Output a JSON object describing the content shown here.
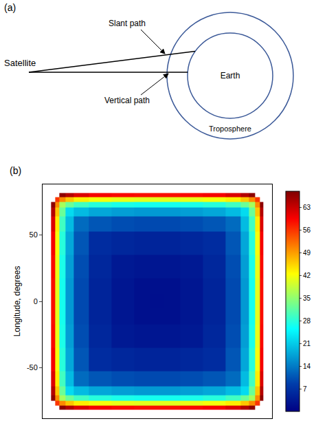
{
  "diagram": {
    "label": "(a)",
    "satellite": "Satellite",
    "slant_path": "Slant path",
    "vertical_path": "Vertical path",
    "earth": "Earth",
    "troposphere": "Troposphere"
  },
  "chart_data": {
    "type": "heatmap",
    "label": "(b)",
    "ylabel": "Longitude, degrees",
    "x": [
      -80,
      -77,
      -73,
      -68,
      -60,
      -45,
      -25,
      -10,
      0,
      10,
      25,
      45,
      60,
      68,
      73,
      77,
      80
    ],
    "y": [
      -80,
      -77,
      -73,
      -68,
      -60,
      -45,
      -25,
      -10,
      0,
      10,
      25,
      45,
      60,
      68,
      73,
      77,
      80
    ],
    "z": [
      [
        null,
        null,
        67,
        64.4,
        61.6,
        59.8,
        59,
        58.6,
        58.6,
        58.6,
        59,
        59.8,
        61.6,
        64.4,
        67,
        null,
        null
      ],
      [
        null,
        56,
        50.4,
        46.4,
        43.6,
        41.8,
        41,
        40.6,
        40.6,
        40.6,
        41,
        41.8,
        43.6,
        46.4,
        50.4,
        56,
        null
      ],
      [
        67,
        50.4,
        36.4,
        32.4,
        29.6,
        27.8,
        27,
        26.6,
        26.6,
        26.6,
        27,
        27.8,
        29.6,
        32.4,
        36.4,
        50.4,
        67
      ],
      [
        64.4,
        46.4,
        32.4,
        22.4,
        19.6,
        17.8,
        17,
        16.6,
        16.6,
        16.6,
        17,
        17.8,
        19.6,
        22.4,
        32.4,
        46.4,
        64.4
      ],
      [
        61.6,
        43.6,
        29.6,
        19.6,
        12.6,
        10.8,
        10,
        9.6,
        9.6,
        9.6,
        10,
        10.8,
        12.6,
        19.6,
        29.6,
        43.6,
        61.6
      ],
      [
        59.8,
        41.8,
        27.8,
        17.8,
        10.8,
        6.3,
        5.5,
        5.1,
        5.1,
        5.1,
        5.5,
        6.3,
        10.8,
        17.8,
        27.8,
        41.8,
        59.8
      ],
      [
        59,
        41,
        27,
        17,
        10,
        5.5,
        3.5,
        3.1,
        3.1,
        3.1,
        3.5,
        5.5,
        10,
        17,
        27,
        41,
        59
      ],
      [
        58.6,
        40.6,
        26.6,
        16.6,
        9.6,
        5.1,
        3.1,
        2.2,
        2.2,
        2.2,
        3.1,
        5.1,
        9.6,
        16.6,
        26.6,
        40.6,
        58.6
      ],
      [
        58.6,
        40.6,
        26.6,
        16.6,
        9.6,
        5.1,
        3.1,
        2.2,
        2.1,
        2.2,
        3.1,
        5.1,
        9.6,
        16.6,
        26.6,
        40.6,
        58.6
      ],
      [
        58.6,
        40.6,
        26.6,
        16.6,
        9.6,
        5.1,
        3.1,
        2.2,
        2.2,
        2.2,
        3.1,
        5.1,
        9.6,
        16.6,
        26.6,
        40.6,
        58.6
      ],
      [
        59,
        41,
        27,
        17,
        10,
        5.5,
        3.5,
        3.1,
        3.1,
        3.1,
        3.5,
        5.5,
        10,
        17,
        27,
        41,
        59
      ],
      [
        59.8,
        41.8,
        27.8,
        17.8,
        10.8,
        6.3,
        5.5,
        5.1,
        5.1,
        5.1,
        5.5,
        6.3,
        10.8,
        17.8,
        27.8,
        41.8,
        59.8
      ],
      [
        61.6,
        43.6,
        29.6,
        19.6,
        12.6,
        10.8,
        10,
        9.6,
        9.6,
        9.6,
        10,
        10.8,
        12.6,
        19.6,
        29.6,
        43.6,
        61.6
      ],
      [
        64.4,
        46.4,
        32.4,
        22.4,
        19.6,
        17.8,
        17,
        16.6,
        16.6,
        16.6,
        17,
        17.8,
        19.6,
        22.4,
        32.4,
        46.4,
        64.4
      ],
      [
        67,
        50.4,
        36.4,
        32.4,
        29.6,
        27.8,
        27,
        26.6,
        26.6,
        26.6,
        27,
        27.8,
        29.6,
        32.4,
        36.4,
        50.4,
        67
      ],
      [
        null,
        56,
        50.4,
        46.4,
        43.6,
        41.8,
        41,
        40.6,
        40.6,
        40.6,
        41,
        41.8,
        43.6,
        46.4,
        50.4,
        56,
        null
      ],
      [
        null,
        null,
        67,
        64.4,
        61.6,
        59.8,
        59,
        58.6,
        58.6,
        58.6,
        59,
        59.8,
        61.6,
        64.4,
        67,
        null,
        null
      ]
    ],
    "xlim": [
      -88,
      88
    ],
    "ylim": [
      -88,
      88
    ],
    "yticks": [
      -50,
      0,
      50
    ],
    "colorbar_range": [
      0,
      68
    ],
    "colorbar_ticks": [
      7,
      14,
      21,
      28,
      35,
      42,
      49,
      56,
      63
    ],
    "grid": false,
    "tick_labels": "y"
  }
}
